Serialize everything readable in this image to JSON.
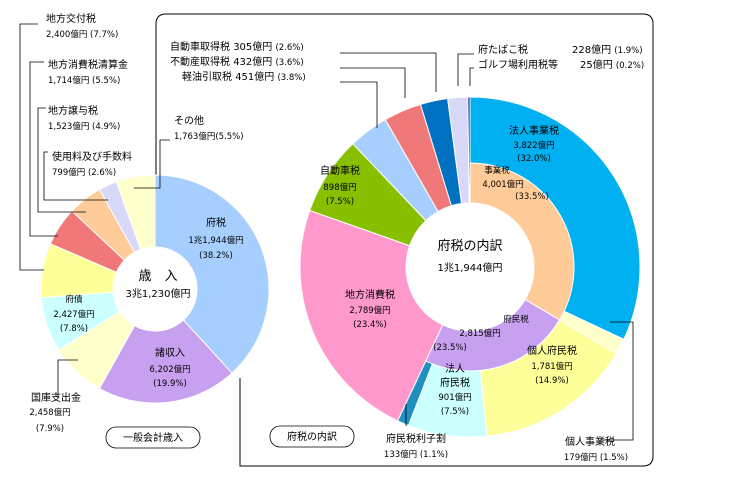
{
  "chart_data": [
    {
      "type": "pie",
      "title": "一般会計歳入",
      "center": {
        "line1": "歳　入",
        "line2": "3兆1,230億円"
      },
      "slices": [
        {
          "name": "府税",
          "amount": "1兆1,944億円",
          "percent_label": "(38.2%)",
          "value": 38.2,
          "color": "#a6cfff"
        },
        {
          "name": "諸収入",
          "amount": "6,202億円",
          "percent_label": "(19.9%)",
          "value": 19.9,
          "color": "#c8a0f0"
        },
        {
          "name": "国庫支出金",
          "amount": "2,458億円",
          "percent_label": "(7.9%)",
          "value": 7.9,
          "color": "#ffffcc"
        },
        {
          "name": "府債",
          "amount": "2,427億円",
          "percent_label": "(7.8%)",
          "value": 7.8,
          "color": "#ccffff"
        },
        {
          "name": "地方交付税",
          "amount": "2,400億円",
          "percent_label": "(7.7%)",
          "value": 7.7,
          "color": "#ffff99"
        },
        {
          "name": "地方消費税清算金",
          "amount": "1,714億円",
          "percent_label": "(5.5%)",
          "value": 5.5,
          "color": "#f07878"
        },
        {
          "name": "地方譲与税",
          "amount": "1,523億円",
          "percent_label": "(4.9%)",
          "value": 4.9,
          "color": "#ffcc99"
        },
        {
          "name": "使用料及び手数料",
          "amount": "799億円",
          "percent_label": "(2.6%)",
          "value": 2.6,
          "color": "#d8d8f8"
        },
        {
          "name": "その他",
          "amount": "1,763億円",
          "percent_label": "(5.5%)",
          "value": 5.5,
          "color": "#ffffcc"
        }
      ]
    },
    {
      "type": "pie",
      "title": "府税の内訳",
      "center": {
        "line1": "府税の内訳",
        "line2": "1兆1,944億円"
      },
      "slices": [
        {
          "name": "法人事業税",
          "amount": "3,822億円",
          "percent_label": "(32.0%)",
          "value": 32.0,
          "color": "#00b0f0"
        },
        {
          "name": "個人事業税",
          "amount": "179億円",
          "percent_label": "(1.5%)",
          "value": 1.5,
          "color": "#ffffcc"
        },
        {
          "name": "個人府民税",
          "amount": "1,781億円",
          "percent_label": "(14.9%)",
          "value": 14.9,
          "color": "#ffff99"
        },
        {
          "name": "法人府民税",
          "amount": "901億円",
          "percent_label": "(7.5%)",
          "value": 7.5,
          "color": "#ccffff"
        },
        {
          "name": "府民税利子割",
          "amount": "133億円",
          "percent_label": "(1.1%)",
          "value": 1.1,
          "color": "#2090c0"
        },
        {
          "name": "地方消費税",
          "amount": "2,789億円",
          "percent_label": "(23.4%)",
          "value": 23.4,
          "color": "#ff99cc"
        },
        {
          "name": "自動車税",
          "amount": "898億円",
          "percent_label": "(7.5%)",
          "value": 7.5,
          "color": "#88c000"
        },
        {
          "name": "軽油引取税",
          "amount": "451億円",
          "percent_label": "(3.8%)",
          "value": 3.8,
          "color": "#a6cfff"
        },
        {
          "name": "不動産取得税",
          "amount": "432億円",
          "percent_label": "(3.6%)",
          "value": 3.6,
          "color": "#f07878"
        },
        {
          "name": "自動車取得税",
          "amount": "305億円",
          "percent_label": "(2.6%)",
          "value": 2.6,
          "color": "#0070c0"
        },
        {
          "name": "府たばこ税",
          "amount": "228億円",
          "percent_label": "(1.9%)",
          "value": 1.9,
          "color": "#d8d8f8"
        },
        {
          "name": "ゴルフ場利用税等",
          "amount": "25億円",
          "percent_label": "(0.2%)",
          "value": 0.2,
          "color": "#000080"
        }
      ],
      "inner_slices": [
        {
          "name": "事業税",
          "amount": "4,001億円",
          "percent_label": "(33.5%)",
          "value": 33.5,
          "color": "#ffcc99"
        },
        {
          "name": "府民税",
          "amount": "2,815億円",
          "percent_label": "(23.5%)",
          "value": 23.5,
          "color": "#c8a0f0"
        }
      ]
    }
  ]
}
